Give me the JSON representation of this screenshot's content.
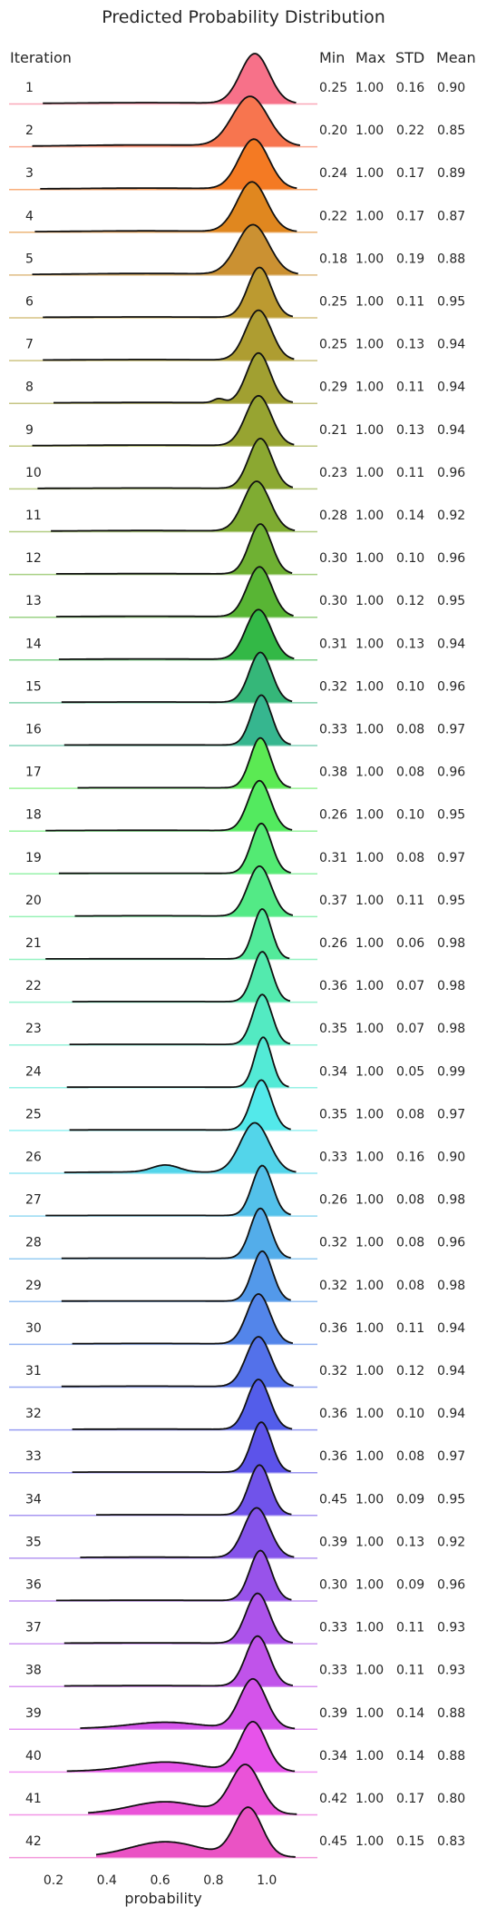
{
  "chart_data": {
    "type": "ridgeline",
    "title": "Predicted Probability Distribution",
    "xlabel": "probability",
    "ylabel": "Iteration",
    "xlim": [
      0.1,
      1.2
    ],
    "xticks": [
      "0.2",
      "0.4",
      "0.6",
      "0.8",
      "1.0"
    ],
    "xtick_values": [
      0.2,
      0.4,
      0.6,
      0.8,
      1.0
    ],
    "grid": false,
    "stat_headers": [
      "Min",
      "Max",
      "STD",
      "Mean"
    ],
    "rows": [
      {
        "label": "1",
        "min": "0.25",
        "max": "1.00",
        "std": "0.16",
        "mean": "0.90"
      },
      {
        "label": "2",
        "min": "0.20",
        "max": "1.00",
        "std": "0.22",
        "mean": "0.85"
      },
      {
        "label": "3",
        "min": "0.24",
        "max": "1.00",
        "std": "0.17",
        "mean": "0.89"
      },
      {
        "label": "4",
        "min": "0.22",
        "max": "1.00",
        "std": "0.17",
        "mean": "0.87"
      },
      {
        "label": "5",
        "min": "0.18",
        "max": "1.00",
        "std": "0.19",
        "mean": "0.88"
      },
      {
        "label": "6",
        "min": "0.25",
        "max": "1.00",
        "std": "0.11",
        "mean": "0.95"
      },
      {
        "label": "7",
        "min": "0.25",
        "max": "1.00",
        "std": "0.13",
        "mean": "0.94"
      },
      {
        "label": "8",
        "min": "0.29",
        "max": "1.00",
        "std": "0.11",
        "mean": "0.94"
      },
      {
        "label": "9",
        "min": "0.21",
        "max": "1.00",
        "std": "0.13",
        "mean": "0.94"
      },
      {
        "label": "10",
        "min": "0.23",
        "max": "1.00",
        "std": "0.11",
        "mean": "0.96"
      },
      {
        "label": "11",
        "min": "0.28",
        "max": "1.00",
        "std": "0.14",
        "mean": "0.92"
      },
      {
        "label": "12",
        "min": "0.30",
        "max": "1.00",
        "std": "0.10",
        "mean": "0.96"
      },
      {
        "label": "13",
        "min": "0.30",
        "max": "1.00",
        "std": "0.12",
        "mean": "0.95"
      },
      {
        "label": "14",
        "min": "0.31",
        "max": "1.00",
        "std": "0.13",
        "mean": "0.94"
      },
      {
        "label": "15",
        "min": "0.32",
        "max": "1.00",
        "std": "0.10",
        "mean": "0.96"
      },
      {
        "label": "16",
        "min": "0.33",
        "max": "1.00",
        "std": "0.08",
        "mean": "0.97"
      },
      {
        "label": "17",
        "min": "0.38",
        "max": "1.00",
        "std": "0.08",
        "mean": "0.96"
      },
      {
        "label": "18",
        "min": "0.26",
        "max": "1.00",
        "std": "0.10",
        "mean": "0.95"
      },
      {
        "label": "19",
        "min": "0.31",
        "max": "1.00",
        "std": "0.08",
        "mean": "0.97"
      },
      {
        "label": "20",
        "min": "0.37",
        "max": "1.00",
        "std": "0.11",
        "mean": "0.95"
      },
      {
        "label": "21",
        "min": "0.26",
        "max": "1.00",
        "std": "0.06",
        "mean": "0.98"
      },
      {
        "label": "22",
        "min": "0.36",
        "max": "1.00",
        "std": "0.07",
        "mean": "0.98"
      },
      {
        "label": "23",
        "min": "0.35",
        "max": "1.00",
        "std": "0.07",
        "mean": "0.98"
      },
      {
        "label": "24",
        "min": "0.34",
        "max": "1.00",
        "std": "0.05",
        "mean": "0.99"
      },
      {
        "label": "25",
        "min": "0.35",
        "max": "1.00",
        "std": "0.08",
        "mean": "0.97"
      },
      {
        "label": "26",
        "min": "0.33",
        "max": "1.00",
        "std": "0.16",
        "mean": "0.90"
      },
      {
        "label": "27",
        "min": "0.26",
        "max": "1.00",
        "std": "0.08",
        "mean": "0.98"
      },
      {
        "label": "28",
        "min": "0.32",
        "max": "1.00",
        "std": "0.08",
        "mean": "0.96"
      },
      {
        "label": "29",
        "min": "0.32",
        "max": "1.00",
        "std": "0.08",
        "mean": "0.98"
      },
      {
        "label": "30",
        "min": "0.36",
        "max": "1.00",
        "std": "0.11",
        "mean": "0.94"
      },
      {
        "label": "31",
        "min": "0.32",
        "max": "1.00",
        "std": "0.12",
        "mean": "0.94"
      },
      {
        "label": "32",
        "min": "0.36",
        "max": "1.00",
        "std": "0.10",
        "mean": "0.94"
      },
      {
        "label": "33",
        "min": "0.36",
        "max": "1.00",
        "std": "0.08",
        "mean": "0.97"
      },
      {
        "label": "34",
        "min": "0.45",
        "max": "1.00",
        "std": "0.09",
        "mean": "0.95"
      },
      {
        "label": "35",
        "min": "0.39",
        "max": "1.00",
        "std": "0.13",
        "mean": "0.92"
      },
      {
        "label": "36",
        "min": "0.30",
        "max": "1.00",
        "std": "0.09",
        "mean": "0.96"
      },
      {
        "label": "37",
        "min": "0.33",
        "max": "1.00",
        "std": "0.11",
        "mean": "0.93"
      },
      {
        "label": "38",
        "min": "0.33",
        "max": "1.00",
        "std": "0.11",
        "mean": "0.93"
      },
      {
        "label": "39",
        "min": "0.39",
        "max": "1.00",
        "std": "0.14",
        "mean": "0.88"
      },
      {
        "label": "40",
        "min": "0.34",
        "max": "1.00",
        "std": "0.14",
        "mean": "0.88"
      },
      {
        "label": "41",
        "min": "0.42",
        "max": "1.00",
        "std": "0.17",
        "mean": "0.80"
      },
      {
        "label": "42",
        "min": "0.45",
        "max": "1.00",
        "std": "0.15",
        "mean": "0.83"
      }
    ],
    "colors": [
      "#f77189",
      "#f7754f",
      "#f47a23",
      "#e0871f",
      "#cb9132",
      "#bc9a30",
      "#ae9d31",
      "#a1a031",
      "#97a431",
      "#8ba831",
      "#7fac32",
      "#6fb133",
      "#58b534",
      "#33b846",
      "#35b779",
      "#36b68f",
      "#36b59f",
      "#37b4ac",
      "#38b2b7",
      "#39b1c2",
      "#3aafce",
      "#3badde",
      "#3ba3ec",
      "#4a9cf3",
      "#6e9af4",
      "#8b94f4",
      "#a48cf4",
      "#b982f4",
      "#cc79f4",
      "#dd6ff1",
      "#f565f4",
      "#f565d8",
      "#f667c3",
      "#f66bb4",
      "#f66ea3"
    ],
    "note_colors_extend": true
  }
}
